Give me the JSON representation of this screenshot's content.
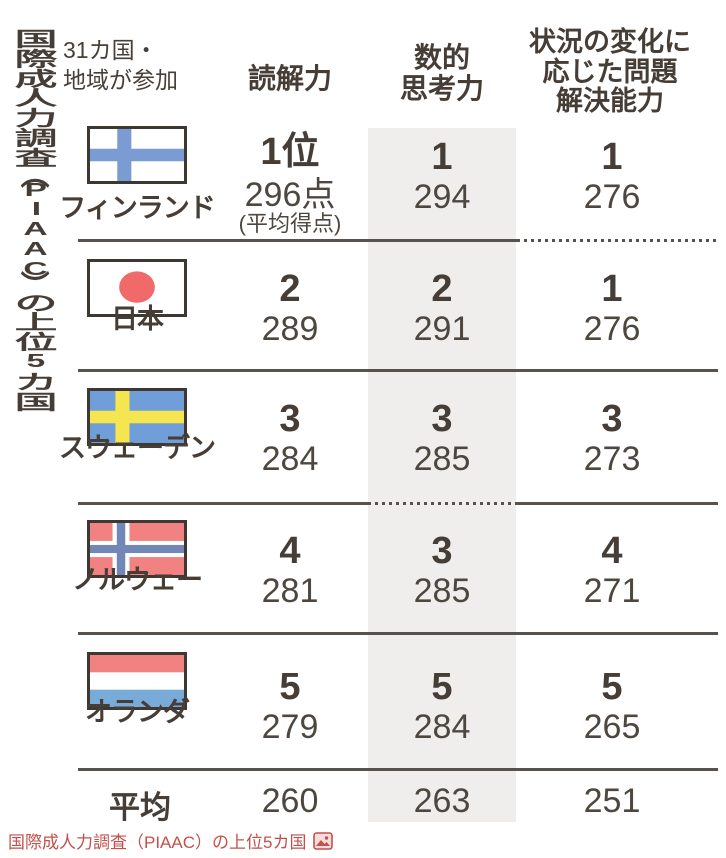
{
  "page": {
    "vertical_title": "国際成人力調査（PIAAC）の上位5カ国",
    "participation_note": "31カ国・\n地域が参加",
    "caption_link": "国際成人力調査（PIAAC）の上位5カ国",
    "caption_icon": "image-icon"
  },
  "columns": {
    "reading": "読解力",
    "numeracy": "数的\n思考力",
    "problem_solving": "状況の変化に\n応じた問題\n解決能力"
  },
  "rows": [
    {
      "country": "フィンランド",
      "flag": "finland",
      "reading": {
        "rank": "1位",
        "score": "296点",
        "note": "(平均得点)"
      },
      "numeracy": {
        "rank": "1",
        "score": "294"
      },
      "problem": {
        "rank": "1",
        "score": "276"
      }
    },
    {
      "country": "日本",
      "flag": "japan",
      "reading": {
        "rank": "2",
        "score": "289"
      },
      "numeracy": {
        "rank": "2",
        "score": "291"
      },
      "problem": {
        "rank": "1",
        "score": "276"
      }
    },
    {
      "country": "スウェーデン",
      "flag": "sweden",
      "reading": {
        "rank": "3",
        "score": "284"
      },
      "numeracy": {
        "rank": "3",
        "score": "285"
      },
      "problem": {
        "rank": "3",
        "score": "273"
      }
    },
    {
      "country": "ノルウェー",
      "flag": "norway",
      "reading": {
        "rank": "4",
        "score": "281"
      },
      "numeracy": {
        "rank": "3",
        "score": "285"
      },
      "problem": {
        "rank": "4",
        "score": "271"
      }
    },
    {
      "country": "オランダ",
      "flag": "netherlands",
      "reading": {
        "rank": "5",
        "score": "279"
      },
      "numeracy": {
        "rank": "5",
        "score": "284"
      },
      "problem": {
        "rank": "5",
        "score": "265"
      }
    }
  ],
  "average": {
    "label": "平均",
    "reading": "260",
    "numeracy": "263",
    "problem": "251"
  },
  "colors": {
    "text": "#474038",
    "separator": "#57524d",
    "numeracy_stripe": "#f0eeec",
    "caption_link": "#c4504c",
    "flag_border": "#3e3833",
    "finland_blue": "#7b9cd2",
    "japan_red": "#f16a6a",
    "sweden_blue": "#6f9ed8",
    "sweden_yellow": "#f5e54e",
    "norway_red": "#f28181",
    "norway_blue": "#7386b8",
    "netherlands_red": "#f28181",
    "netherlands_blue": "#79abd9"
  },
  "chart_data": {
    "type": "table",
    "title": "国際成人力調査（PIAAC）の上位5カ国",
    "subtitle": "31カ国・地域が参加",
    "unit": "平均得点",
    "columns": [
      "読解力",
      "数的思考力",
      "状況の変化に応じた問題解決能力"
    ],
    "rows": [
      {
        "country": "フィンランド",
        "reading": {
          "rank": 1,
          "score": 296
        },
        "numeracy": {
          "rank": 1,
          "score": 294
        },
        "problem_solving": {
          "rank": 1,
          "score": 276
        }
      },
      {
        "country": "日本",
        "reading": {
          "rank": 2,
          "score": 289
        },
        "numeracy": {
          "rank": 2,
          "score": 291
        },
        "problem_solving": {
          "rank": 1,
          "score": 276
        }
      },
      {
        "country": "スウェーデン",
        "reading": {
          "rank": 3,
          "score": 284
        },
        "numeracy": {
          "rank": 3,
          "score": 285
        },
        "problem_solving": {
          "rank": 3,
          "score": 273
        }
      },
      {
        "country": "ノルウェー",
        "reading": {
          "rank": 4,
          "score": 281
        },
        "numeracy": {
          "rank": 3,
          "score": 285
        },
        "problem_solving": {
          "rank": 4,
          "score": 271
        }
      },
      {
        "country": "オランダ",
        "reading": {
          "rank": 5,
          "score": 279
        },
        "numeracy": {
          "rank": 5,
          "score": 284
        },
        "problem_solving": {
          "rank": 5,
          "score": 265
        }
      }
    ],
    "average": {
      "reading": 260,
      "numeracy": 263,
      "problem_solving": 251
    },
    "layout_hints": {
      "numeracy_column_highlighted": true,
      "dotted_separator_marks_tied_ranks": true
    }
  }
}
